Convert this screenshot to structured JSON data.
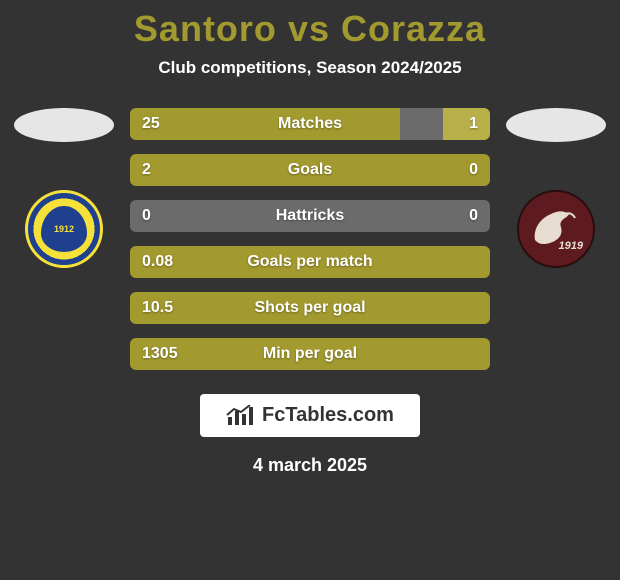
{
  "header": {
    "title_left": "Santoro",
    "title_vs": "vs",
    "title_right": "Corazza",
    "title_color": "#a39a2f"
  },
  "subtitle": "Club competitions, Season 2024/2025",
  "oval_color": "#e6e6e6",
  "player_a": {
    "crest_year": "1912"
  },
  "player_b": {
    "crest_year": "1919"
  },
  "bars": {
    "neutral_color": "#6b6b6b",
    "fill_a_color": "#a39a2f",
    "fill_b_color": "#b9b04a",
    "rows": [
      {
        "label": "Matches",
        "a": "25",
        "b": "1",
        "a_pct": 75,
        "b_pct": 13
      },
      {
        "label": "Goals",
        "a": "2",
        "b": "0",
        "a_pct": 100,
        "b_pct": 0
      },
      {
        "label": "Hattricks",
        "a": "0",
        "b": "0",
        "a_pct": 0,
        "b_pct": 0
      },
      {
        "label": "Goals per match",
        "a": "0.08",
        "b": "",
        "a_pct": 100,
        "b_pct": 0
      },
      {
        "label": "Shots per goal",
        "a": "10.5",
        "b": "",
        "a_pct": 100,
        "b_pct": 0
      },
      {
        "label": "Min per goal",
        "a": "1305",
        "b": "",
        "a_pct": 100,
        "b_pct": 0
      }
    ]
  },
  "footer": {
    "brand_text": "FcTables.com",
    "date": "4 march 2025"
  }
}
